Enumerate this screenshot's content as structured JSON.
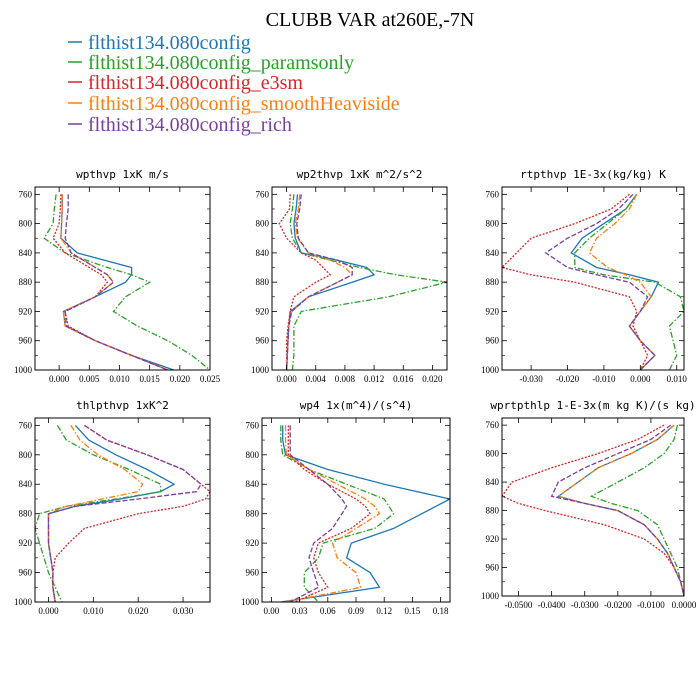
{
  "figure": {
    "title": "CLUBB VAR at260E,-7N"
  },
  "legend": [
    {
      "label": "flthist134.080config",
      "color": "#1f77b4",
      "dash": "solid"
    },
    {
      "label": "flthist134.080config_paramsonly",
      "color": "#2ca02c",
      "dash": "dashdot"
    },
    {
      "label": "flthist134.080config_e3sm",
      "color": "#d62728",
      "dash": "dotted"
    },
    {
      "label": "flthist134.080config_smoothHeaviside",
      "color": "#ff7f0e",
      "dash": "dashdot"
    },
    {
      "label": "flthist134.080config_rich",
      "color": "#7b3fa0",
      "dash": "dashed"
    }
  ],
  "chart_data": [
    {
      "type": "line",
      "title": "wpthvp  1xK m/s",
      "xlim": [
        -0.004,
        0.025
      ],
      "ylim": [
        1000,
        750
      ],
      "xticks": [
        0.0,
        0.005,
        0.01,
        0.015,
        0.02,
        0.025
      ],
      "xtick_labels": [
        "0.000",
        "0.005",
        "0.010",
        "0.015",
        "0.020",
        "0.025"
      ],
      "yticks": [
        760,
        800,
        840,
        880,
        920,
        960,
        1000
      ],
      "y": [
        760,
        780,
        800,
        820,
        840,
        860,
        870,
        880,
        900,
        920,
        940,
        960,
        980,
        1000
      ],
      "series": [
        {
          "x": [
            0.0005,
            0.0005,
            0.0004,
            0.0003,
            0.003,
            0.012,
            0.012,
            0.011,
            0.006,
            0.0007,
            0.001,
            0.006,
            0.012,
            0.019
          ]
        },
        {
          "x": [
            -0.0005,
            -0.0008,
            -0.001,
            -0.0025,
            0.001,
            0.008,
            0.012,
            0.015,
            0.011,
            0.009,
            0.013,
            0.018,
            0.022,
            0.025
          ]
        },
        {
          "x": [
            0.0003,
            0.0002,
            0.0,
            -0.001,
            0.001,
            0.005,
            0.007,
            0.008,
            0.006,
            0.001,
            0.0015,
            0.006,
            0.012,
            0.018
          ]
        },
        {
          "x": [
            0.0005,
            0.0005,
            0.0004,
            0.0003,
            0.002,
            0.006,
            0.008,
            0.009,
            0.006,
            0.0007,
            0.001,
            0.006,
            0.012,
            0.018
          ]
        },
        {
          "x": [
            0.0015,
            0.0015,
            0.0012,
            0.001,
            0.002,
            0.006,
            0.008,
            0.009,
            0.006,
            0.001,
            0.0012,
            0.006,
            0.012,
            0.018
          ]
        }
      ]
    },
    {
      "type": "line",
      "title": "wp2thvp  1xK m^2/s^2",
      "xlim": [
        -0.002,
        0.022
      ],
      "ylim": [
        1000,
        750
      ],
      "xticks": [
        0.0,
        0.004,
        0.008,
        0.012,
        0.016,
        0.02
      ],
      "xtick_labels": [
        "0.000",
        "0.004",
        "0.008",
        "0.012",
        "0.016",
        "0.020"
      ],
      "yticks": [
        760,
        800,
        840,
        880,
        920,
        960,
        1000
      ],
      "y": [
        760,
        780,
        800,
        820,
        840,
        850,
        860,
        870,
        880,
        900,
        920,
        940,
        960,
        980,
        1000
      ],
      "series": [
        {
          "x": [
            0.0015,
            0.0013,
            0.001,
            0.0012,
            0.002,
            0.007,
            0.011,
            0.012,
            0.009,
            0.003,
            0.0005,
            0.0003,
            0.0002,
            0.0001,
            0.0
          ]
        },
        {
          "x": [
            0.001,
            0.0008,
            0.0005,
            0.0008,
            0.002,
            0.006,
            0.01,
            0.015,
            0.022,
            0.014,
            0.002,
            0.001,
            0.001,
            0.001,
            0.0008
          ]
        },
        {
          "x": [
            0.0005,
            0.0004,
            -0.001,
            0.0,
            0.002,
            0.004,
            0.005,
            0.006,
            0.004,
            0.001,
            0.0005,
            0.0002,
            0.0,
            0.0,
            0.0
          ]
        },
        {
          "x": [
            0.0018,
            0.0016,
            0.0012,
            0.0015,
            0.003,
            0.006,
            0.008,
            0.009,
            0.007,
            0.003,
            0.0007,
            0.0003,
            0.0002,
            0.0001,
            0.0
          ]
        },
        {
          "x": [
            0.002,
            0.0018,
            0.0014,
            0.0016,
            0.003,
            0.007,
            0.009,
            0.009,
            0.007,
            0.003,
            0.0007,
            0.0003,
            0.0002,
            0.0001,
            0.0
          ]
        }
      ]
    },
    {
      "type": "line",
      "title": "rtpthvp  1E-3x(kg/kg) K",
      "xlim": [
        -0.038,
        0.012
      ],
      "ylim": [
        1000,
        750
      ],
      "xticks": [
        -0.03,
        -0.02,
        -0.01,
        0.0,
        0.01
      ],
      "xtick_labels": [
        "-0.030",
        "-0.020",
        "-0.010",
        "0.000",
        "0.010"
      ],
      "yticks": [
        760,
        800,
        840,
        880,
        920,
        960,
        1000
      ],
      "y": [
        760,
        780,
        800,
        820,
        840,
        860,
        870,
        880,
        900,
        920,
        940,
        960,
        980,
        1000
      ],
      "series": [
        {
          "x": [
            -0.001,
            -0.004,
            -0.01,
            -0.016,
            -0.019,
            -0.012,
            -0.003,
            0.005,
            0.003,
            0.0,
            -0.003,
            0.0,
            0.004,
            0.0
          ]
        },
        {
          "x": [
            -0.001,
            -0.004,
            -0.009,
            -0.014,
            -0.018,
            -0.018,
            -0.01,
            0.004,
            0.011,
            0.012,
            0.008,
            0.009,
            0.01,
            0.008
          ]
        },
        {
          "x": [
            -0.003,
            -0.008,
            -0.018,
            -0.03,
            -0.034,
            -0.038,
            -0.03,
            -0.018,
            -0.003,
            -0.001,
            -0.002,
            0.0,
            0.002,
            0.0
          ]
        },
        {
          "x": [
            -0.001,
            -0.003,
            -0.007,
            -0.012,
            -0.014,
            -0.009,
            -0.004,
            0.0,
            0.003,
            0.0,
            -0.003,
            0.0,
            0.004,
            0.0
          ]
        },
        {
          "x": [
            -0.002,
            -0.006,
            -0.012,
            -0.02,
            -0.026,
            -0.02,
            -0.012,
            -0.003,
            0.002,
            0.0,
            -0.003,
            0.0,
            0.004,
            0.0
          ]
        }
      ]
    },
    {
      "type": "line",
      "title": "thlpthvp  1xK^2",
      "xlim": [
        -0.003,
        0.036
      ],
      "ylim": [
        1000,
        750
      ],
      "xticks": [
        0.0,
        0.01,
        0.02,
        0.03
      ],
      "xtick_labels": [
        "0.000",
        "0.010",
        "0.020",
        "0.030"
      ],
      "yticks": [
        760,
        800,
        840,
        880,
        920,
        960,
        1000
      ],
      "y": [
        760,
        780,
        800,
        820,
        840,
        850,
        860,
        870,
        880,
        900,
        920,
        940,
        960,
        980,
        1000
      ],
      "series": [
        {
          "x": [
            0.006,
            0.009,
            0.015,
            0.022,
            0.028,
            0.025,
            0.016,
            0.006,
            0.0,
            0.0,
            0.0,
            0.0005,
            0.001,
            0.001,
            0.0015
          ]
        },
        {
          "x": [
            0.002,
            0.004,
            0.01,
            0.018,
            0.025,
            0.025,
            0.015,
            0.004,
            -0.002,
            -0.003,
            -0.002,
            -0.001,
            0.0,
            0.0015,
            0.003
          ]
        },
        {
          "x": [
            0.008,
            0.013,
            0.022,
            0.03,
            0.034,
            0.036,
            0.035,
            0.03,
            0.02,
            0.008,
            0.0045,
            0.0015,
            0.001,
            0.001,
            0.0015
          ]
        },
        {
          "x": [
            0.005,
            0.007,
            0.011,
            0.017,
            0.021,
            0.02,
            0.012,
            0.004,
            0.0,
            0.0,
            0.0,
            0.0005,
            0.001,
            0.001,
            0.0015
          ]
        },
        {
          "x": [
            0.008,
            0.013,
            0.022,
            0.03,
            0.034,
            0.033,
            0.02,
            0.006,
            0.0,
            0.0,
            0.0,
            0.0005,
            0.001,
            0.001,
            0.0015
          ]
        }
      ]
    },
    {
      "type": "line",
      "title": "wp4  1x(m^4)/(s^4)",
      "xlim": [
        -0.01,
        0.19
      ],
      "ylim": [
        1000,
        750
      ],
      "xticks": [
        0.0,
        0.03,
        0.06,
        0.09,
        0.12,
        0.15,
        0.18
      ],
      "xtick_labels": [
        "0.00",
        "0.03",
        "0.06",
        "0.09",
        "0.12",
        "0.15",
        "0.18"
      ],
      "yticks": [
        760,
        800,
        840,
        880,
        920,
        960,
        1000
      ],
      "y": [
        760,
        780,
        800,
        820,
        840,
        860,
        870,
        880,
        900,
        920,
        940,
        960,
        980,
        1000
      ],
      "series": [
        {
          "x": [
            0.012,
            0.012,
            0.015,
            0.06,
            0.12,
            0.19,
            0.175,
            0.16,
            0.13,
            0.085,
            0.08,
            0.105,
            0.115,
            0.01
          ]
        },
        {
          "x": [
            0.01,
            0.01,
            0.012,
            0.04,
            0.08,
            0.12,
            0.125,
            0.13,
            0.11,
            0.055,
            0.05,
            0.035,
            0.035,
            0.05
          ]
        },
        {
          "x": [
            0.018,
            0.018,
            0.018,
            0.035,
            0.06,
            0.09,
            0.1,
            0.105,
            0.085,
            0.05,
            0.045,
            0.05,
            0.06,
            0.025
          ]
        },
        {
          "x": [
            0.015,
            0.015,
            0.016,
            0.04,
            0.07,
            0.1,
            0.11,
            0.115,
            0.09,
            0.065,
            0.07,
            0.09,
            0.095,
            0.015
          ]
        },
        {
          "x": [
            0.02,
            0.02,
            0.02,
            0.04,
            0.06,
            0.075,
            0.08,
            0.075,
            0.065,
            0.045,
            0.04,
            0.045,
            0.05,
            0.02
          ]
        }
      ]
    },
    {
      "type": "line",
      "title": "wprtpthlp  1-E-3x(m kg K)/(s kg)",
      "xlim": [
        -0.055,
        0.0
      ],
      "ylim": [
        1000,
        750
      ],
      "xticks": [
        -0.05,
        -0.04,
        -0.03,
        -0.02,
        -0.01,
        0.0
      ],
      "xtick_labels": [
        "-0.0500",
        "-0.0400",
        "-0.0300",
        "-0.0200",
        "-0.0100",
        "0.0000"
      ],
      "yticks": [
        760,
        800,
        840,
        880,
        920,
        960,
        1000
      ],
      "y": [
        760,
        780,
        800,
        820,
        840,
        860,
        870,
        880,
        900,
        920,
        940,
        960,
        980,
        1000
      ],
      "series": [
        {
          "x": [
            -0.003,
            -0.008,
            -0.016,
            -0.026,
            -0.032,
            -0.038,
            -0.03,
            -0.02,
            -0.012,
            -0.008,
            -0.005,
            -0.003,
            -0.001,
            0.0
          ]
        },
        {
          "x": [
            -0.002,
            -0.003,
            -0.006,
            -0.012,
            -0.02,
            -0.028,
            -0.022,
            -0.014,
            -0.008,
            -0.006,
            -0.004,
            -0.002,
            -0.001,
            0.0
          ]
        },
        {
          "x": [
            -0.006,
            -0.014,
            -0.026,
            -0.04,
            -0.052,
            -0.055,
            -0.05,
            -0.042,
            -0.024,
            -0.012,
            -0.006,
            -0.003,
            -0.001,
            0.0
          ]
        },
        {
          "x": [
            -0.003,
            -0.008,
            -0.016,
            -0.026,
            -0.032,
            -0.038,
            -0.03,
            -0.02,
            -0.012,
            -0.008,
            -0.005,
            -0.003,
            -0.001,
            0.0
          ]
        },
        {
          "x": [
            -0.004,
            -0.01,
            -0.02,
            -0.03,
            -0.038,
            -0.04,
            -0.03,
            -0.02,
            -0.012,
            -0.008,
            -0.005,
            -0.003,
            -0.001,
            0.0
          ]
        }
      ]
    }
  ]
}
